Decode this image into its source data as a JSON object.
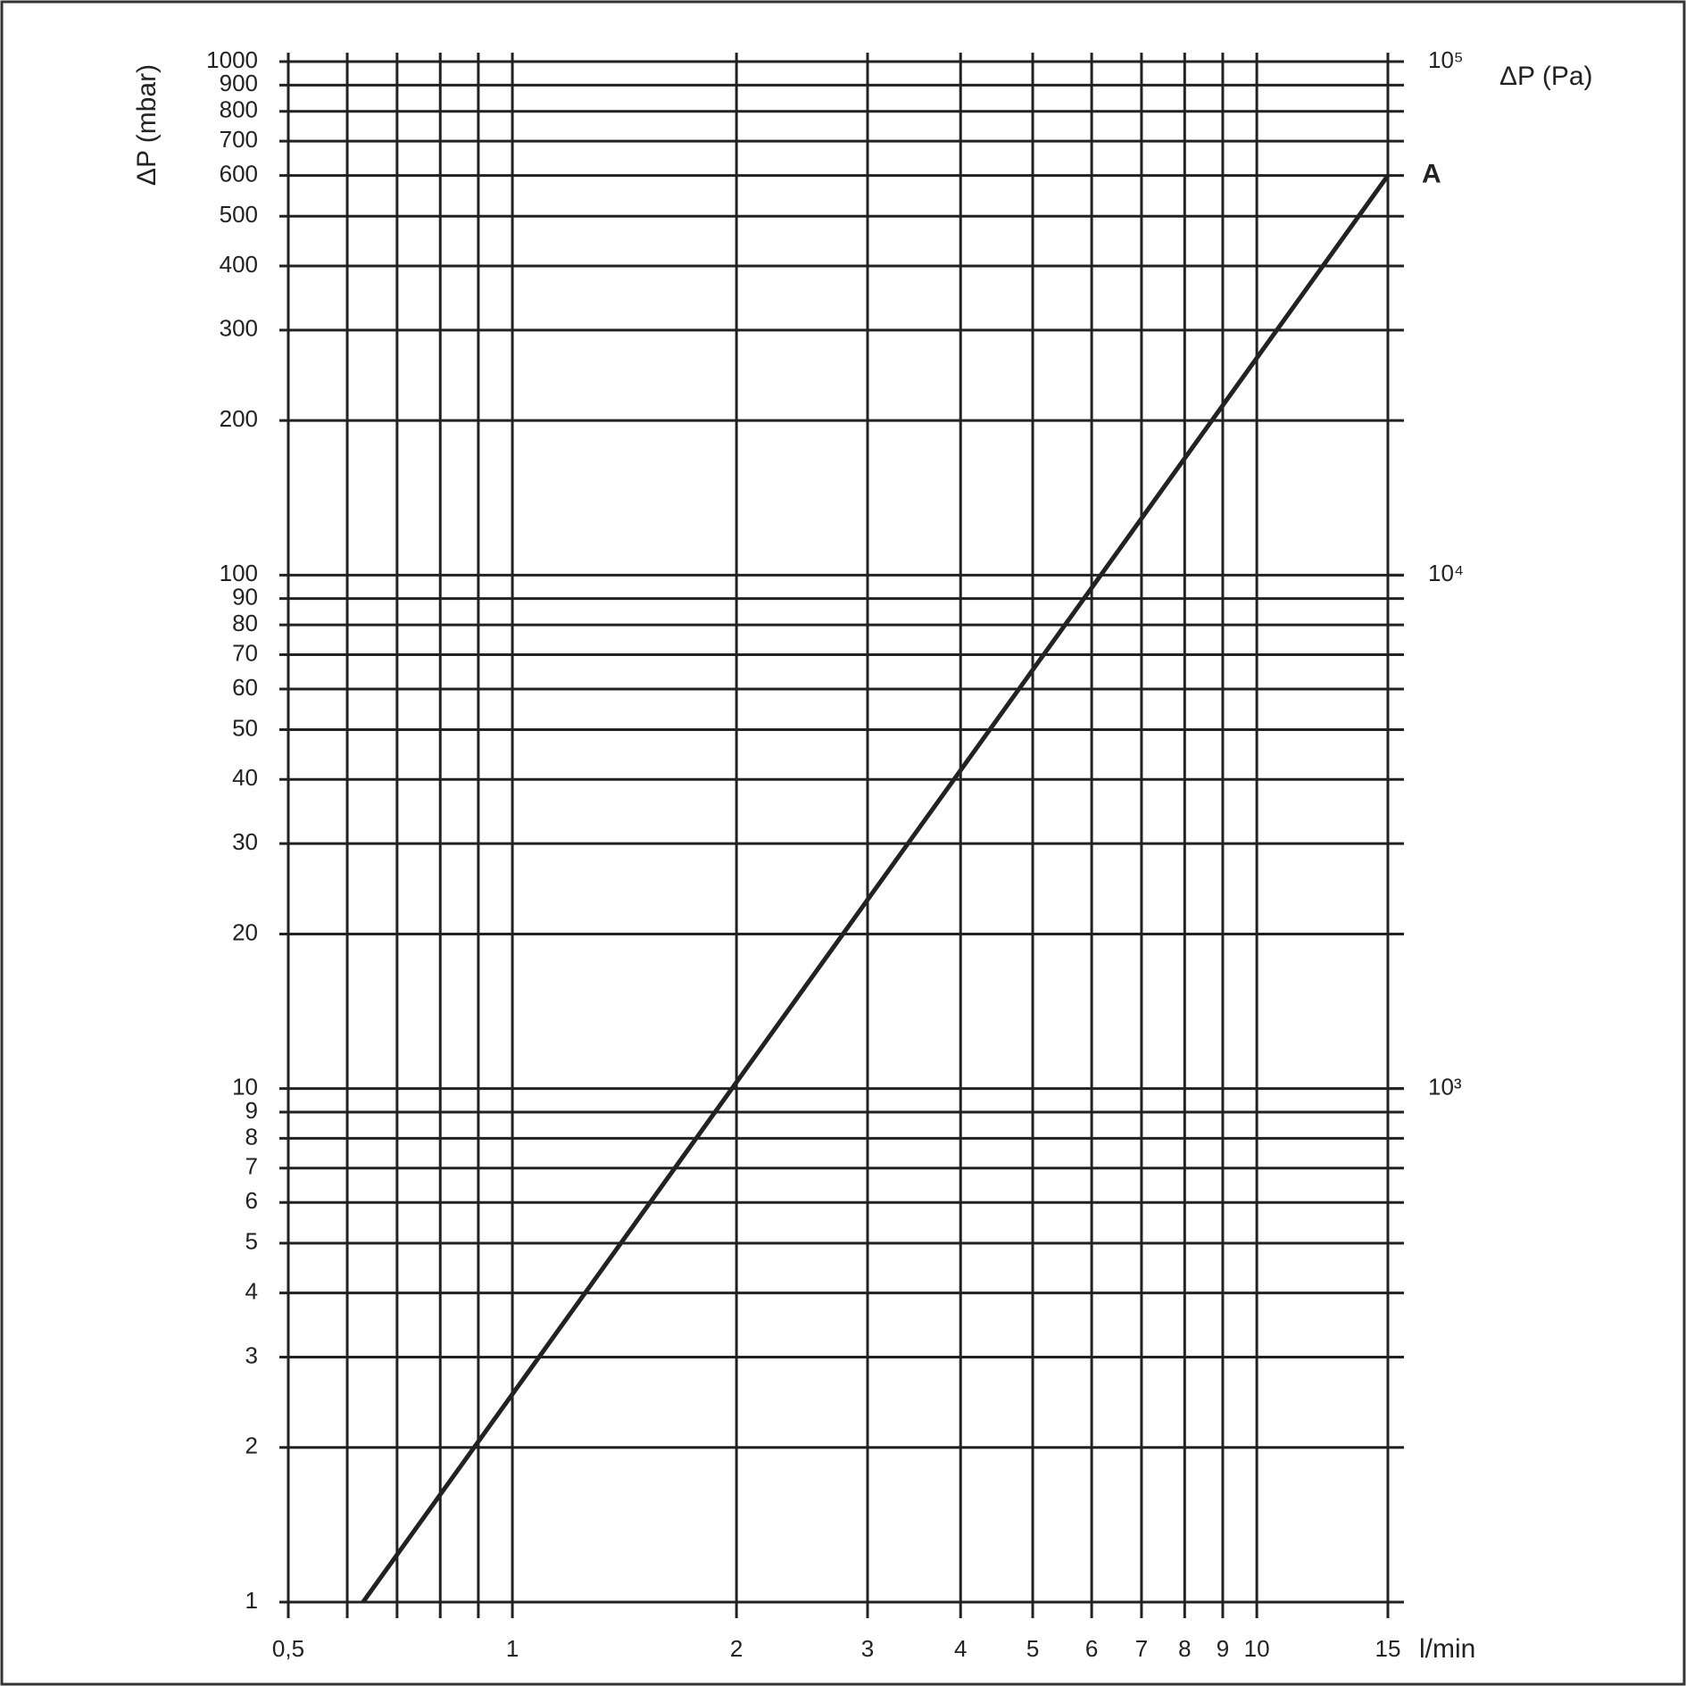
{
  "chart_data": {
    "type": "line",
    "y_label": "ΔP (mbar)",
    "y2_label": "ΔP (Pa)",
    "x_label": "l/min",
    "log_x": true,
    "log_y": true,
    "grid": true,
    "xlim": [
      0.5,
      15
    ],
    "xticks": [
      {
        "value": 0.5,
        "label": "0,5"
      },
      1,
      2,
      3,
      4,
      5,
      6,
      7,
      8,
      9,
      10,
      15
    ],
    "x_minor_ticks": [
      0.6,
      0.7,
      0.8,
      0.9
    ],
    "ylim": [
      1,
      1000
    ],
    "yticks": [
      1,
      2,
      3,
      4,
      5,
      6,
      7,
      8,
      9,
      10,
      20,
      30,
      40,
      50,
      60,
      70,
      80,
      90,
      100,
      200,
      300,
      400,
      500,
      600,
      700,
      800,
      900,
      1000
    ],
    "y2lim": [
      100,
      100000
    ],
    "y2ticks": [
      {
        "value": 1000,
        "label": "10³"
      },
      {
        "value": 10000,
        "label": "10⁴"
      },
      {
        "value": 100000,
        "label": "10⁵"
      }
    ],
    "x": [
      0.63,
      15
    ],
    "series": [
      {
        "name": "A",
        "color": "#222222",
        "values": [
          1,
          600
        ]
      }
    ]
  }
}
